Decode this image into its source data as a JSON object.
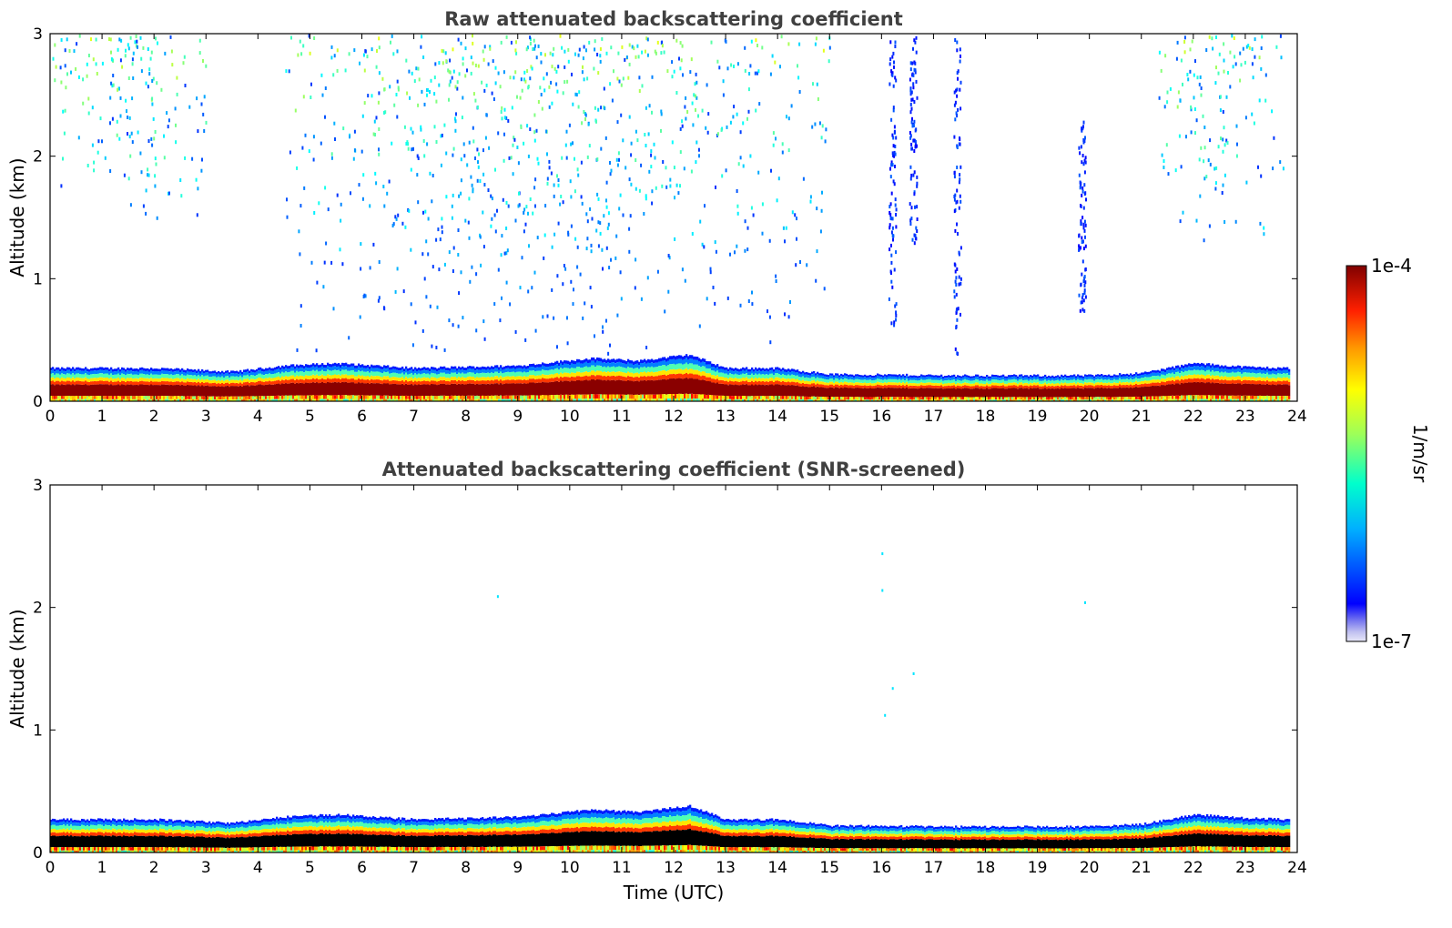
{
  "chart_data": [
    {
      "type": "heatmap",
      "title": "Raw attenuated backscattering coefficient",
      "xlabel": "",
      "ylabel": "Altitude (km)",
      "xlim": [
        0,
        24
      ],
      "ylim": [
        0,
        3
      ],
      "x_ticks": [
        0,
        1,
        2,
        3,
        4,
        5,
        6,
        7,
        8,
        9,
        10,
        11,
        12,
        13,
        14,
        15,
        16,
        17,
        18,
        19,
        20,
        21,
        22,
        23,
        24
      ],
      "y_ticks": [
        0,
        1,
        2,
        3
      ],
      "grid": false,
      "data_end_hour": 23.85,
      "boundary_layer_top_km": [
        {
          "x": 0,
          "y": 0.27
        },
        {
          "x": 2,
          "y": 0.27
        },
        {
          "x": 3.5,
          "y": 0.24
        },
        {
          "x": 4.5,
          "y": 0.29
        },
        {
          "x": 5.5,
          "y": 0.31
        },
        {
          "x": 7,
          "y": 0.27
        },
        {
          "x": 9,
          "y": 0.29
        },
        {
          "x": 10.4,
          "y": 0.35
        },
        {
          "x": 11.3,
          "y": 0.33
        },
        {
          "x": 12.3,
          "y": 0.38
        },
        {
          "x": 13,
          "y": 0.27
        },
        {
          "x": 14,
          "y": 0.27
        },
        {
          "x": 15,
          "y": 0.22
        },
        {
          "x": 17.5,
          "y": 0.21
        },
        {
          "x": 20,
          "y": 0.21
        },
        {
          "x": 21,
          "y": 0.23
        },
        {
          "x": 22,
          "y": 0.31
        },
        {
          "x": 23,
          "y": 0.28
        },
        {
          "x": 23.85,
          "y": 0.27
        }
      ],
      "scatter_regions": [
        {
          "x0": 0,
          "x1": 3,
          "y0": 1.5,
          "y1": 3.0,
          "level": 0.35
        },
        {
          "x0": 4.5,
          "x1": 15.0,
          "y0": 0.35,
          "y1": 3.0,
          "level": 0.55
        },
        {
          "x0": 21.3,
          "x1": 23.8,
          "y0": 1.3,
          "y1": 3.0,
          "level": 0.35
        }
      ],
      "vertical_streaks": [
        {
          "x": 16.2,
          "y0": 0.6,
          "y1": 3.0
        },
        {
          "x": 16.6,
          "y0": 1.3,
          "y1": 3.0
        },
        {
          "x": 17.45,
          "y0": 0.38,
          "y1": 3.0
        },
        {
          "x": 19.85,
          "y0": 0.75,
          "y1": 2.3
        }
      ]
    },
    {
      "type": "heatmap",
      "title": "Attenuated backscattering coefficient (SNR-screened)",
      "xlabel": "Time (UTC)",
      "ylabel": "Altitude (km)",
      "xlim": [
        0,
        24
      ],
      "ylim": [
        0,
        3
      ],
      "x_ticks": [
        0,
        1,
        2,
        3,
        4,
        5,
        6,
        7,
        8,
        9,
        10,
        11,
        12,
        13,
        14,
        15,
        16,
        17,
        18,
        19,
        20,
        21,
        22,
        23,
        24
      ],
      "y_ticks": [
        0,
        1,
        2,
        3
      ],
      "grid": false,
      "data_end_hour": 23.85,
      "saturated_color": "#000000"
    }
  ],
  "colorbar": {
    "label": "1/m/sr",
    "max_label": "1e-4",
    "min_label": "1e-7",
    "colormap": "jet",
    "scale": "log"
  }
}
